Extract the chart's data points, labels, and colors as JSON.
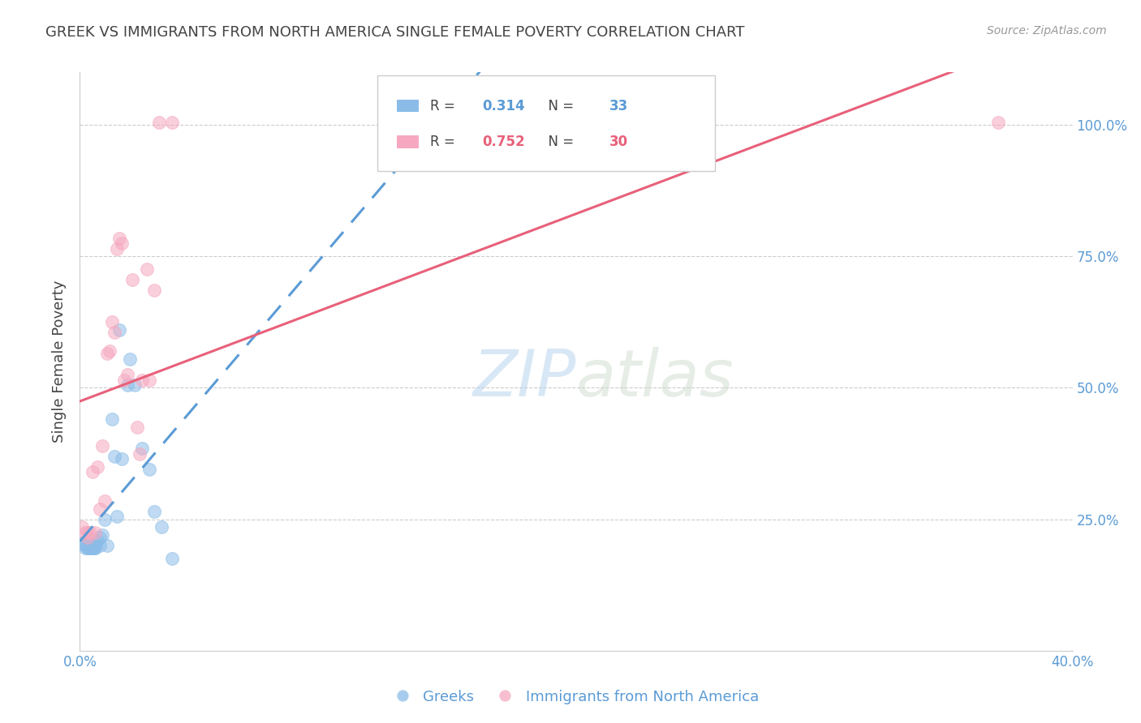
{
  "title": "GREEK VS IMMIGRANTS FROM NORTH AMERICA SINGLE FEMALE POVERTY CORRELATION CHART",
  "source": "Source: ZipAtlas.com",
  "ylabel": "Single Female Poverty",
  "legend_label1": "Greeks",
  "legend_label2": "Immigrants from North America",
  "watermark_zip": "ZIP",
  "watermark_atlas": "atlas",
  "greek_x": [
    0.001,
    0.002,
    0.002,
    0.003,
    0.003,
    0.003,
    0.004,
    0.004,
    0.005,
    0.005,
    0.005,
    0.006,
    0.006,
    0.006,
    0.007,
    0.008,
    0.008,
    0.009,
    0.01,
    0.011,
    0.013,
    0.014,
    0.015,
    0.016,
    0.017,
    0.019,
    0.02,
    0.022,
    0.025,
    0.028,
    0.03,
    0.033,
    0.037
  ],
  "greek_y": [
    0.205,
    0.195,
    0.2,
    0.195,
    0.195,
    0.2,
    0.195,
    0.195,
    0.195,
    0.195,
    0.2,
    0.195,
    0.195,
    0.2,
    0.21,
    0.2,
    0.215,
    0.22,
    0.25,
    0.2,
    0.44,
    0.37,
    0.255,
    0.61,
    0.365,
    0.505,
    0.555,
    0.505,
    0.385,
    0.345,
    0.265,
    0.235,
    0.175
  ],
  "imm_x": [
    0.001,
    0.002,
    0.003,
    0.003,
    0.004,
    0.005,
    0.006,
    0.007,
    0.008,
    0.009,
    0.01,
    0.011,
    0.012,
    0.013,
    0.014,
    0.015,
    0.016,
    0.017,
    0.018,
    0.019,
    0.021,
    0.023,
    0.024,
    0.025,
    0.027,
    0.028,
    0.03,
    0.032,
    0.037,
    0.37
  ],
  "imm_y": [
    0.235,
    0.225,
    0.215,
    0.225,
    0.225,
    0.34,
    0.225,
    0.35,
    0.27,
    0.39,
    0.285,
    0.565,
    0.57,
    0.625,
    0.605,
    0.765,
    0.785,
    0.775,
    0.515,
    0.525,
    0.705,
    0.425,
    0.375,
    0.515,
    0.725,
    0.515,
    0.685,
    1.005,
    1.005,
    1.005
  ],
  "greek_color": "#8bbce8",
  "imm_color": "#f5a8bf",
  "greek_line_color": "#5b9bd5",
  "imm_line_color": "#e8607a",
  "xlim": [
    0.0,
    0.4
  ],
  "ylim": [
    0.0,
    1.1
  ],
  "greek_R": "0.314",
  "greek_N": "33",
  "imm_R": "0.752",
  "imm_N": "30",
  "marker_size": 130,
  "alpha": 0.55,
  "text_color": "#444444",
  "axis_color": "#5b9bd5",
  "grid_color": "#cccccc",
  "legend_R_color_greek": "#5b9bd5",
  "legend_R_color_imm": "#e8607a"
}
